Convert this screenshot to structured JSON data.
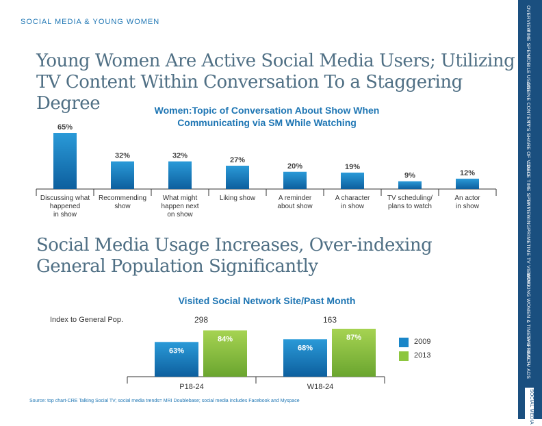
{
  "top_label": "SOCIAL MEDIA & YOUNG WOMEN",
  "headline1": "Young Women Are Active Social Media Users; Utilizing TV Content Within Conversation To a Staggering Degree",
  "headline2": "Social Media Usage Increases, Over-indexing General Population Significantly",
  "sidebar": {
    "items": [
      {
        "label": "OVERVIEW",
        "active": false
      },
      {
        "label": "TIME SPENT",
        "active": false
      },
      {
        "label": "MOBILE USAGE",
        "active": false
      },
      {
        "label": "ONLINE CONTENT",
        "active": false
      },
      {
        "label": "TV'S SHARE OF VIDEO",
        "active": false
      },
      {
        "label": "CABLE TIME SPENT",
        "active": false
      },
      {
        "label": "TV VIEWING",
        "active": false
      },
      {
        "label": "PRIMETIME TV VIEWING",
        "active": false
      },
      {
        "label": "WORKING WOMEN & TIMESHIFTING",
        "active": false
      },
      {
        "label": "TV'S REACH",
        "active": false
      },
      {
        "label": "TV ADS",
        "active": false
      },
      {
        "label": "SOCIAL MEDIA",
        "active": true
      }
    ]
  },
  "index_label": "Index to General Pop.",
  "index_values": [
    "298",
    "163"
  ],
  "source": "Source: top chart-CRE Talking Social TV; social media trends= MRI Doublebase; social media includes Facebook and Myspace",
  "colors": {
    "headline": "#4f6f84",
    "accent_blue": "#1d75b3",
    "bar_blue": "#1a86c8",
    "bar_green": "#8dc63f",
    "sidebar": "#1a4f7f"
  },
  "chart_data": [
    {
      "type": "bar",
      "title": "Women:Topic of Conversation About Show When Communicating via SM While Watching",
      "categories": [
        [
          "Discussing what",
          "happened",
          "in show"
        ],
        [
          "Recommending",
          "show"
        ],
        [
          "What might",
          "happen next",
          "on show"
        ],
        [
          "Liking show"
        ],
        [
          "A reminder",
          "about show"
        ],
        [
          "A character",
          "in show"
        ],
        [
          "TV scheduling/",
          "plans to watch"
        ],
        [
          "An actor",
          "in show"
        ]
      ],
      "values": [
        65,
        32,
        32,
        27,
        20,
        19,
        9,
        12
      ],
      "value_labels": [
        "65%",
        "32%",
        "32%",
        "27%",
        "20%",
        "19%",
        "9%",
        "12%"
      ],
      "ylim": [
        0,
        65
      ],
      "grid": false
    },
    {
      "type": "bar",
      "title": "Visited Social Network Site/Past Month",
      "categories": [
        "P18-24",
        "W18-24"
      ],
      "series": [
        {
          "name": "2009",
          "values": [
            63,
            68
          ],
          "labels": [
            "63%",
            "68%"
          ]
        },
        {
          "name": "2013",
          "values": [
            84,
            87
          ],
          "labels": [
            "84%",
            "87%"
          ]
        }
      ],
      "ylim": [
        0,
        87
      ],
      "legend": "right",
      "grid": false
    }
  ]
}
